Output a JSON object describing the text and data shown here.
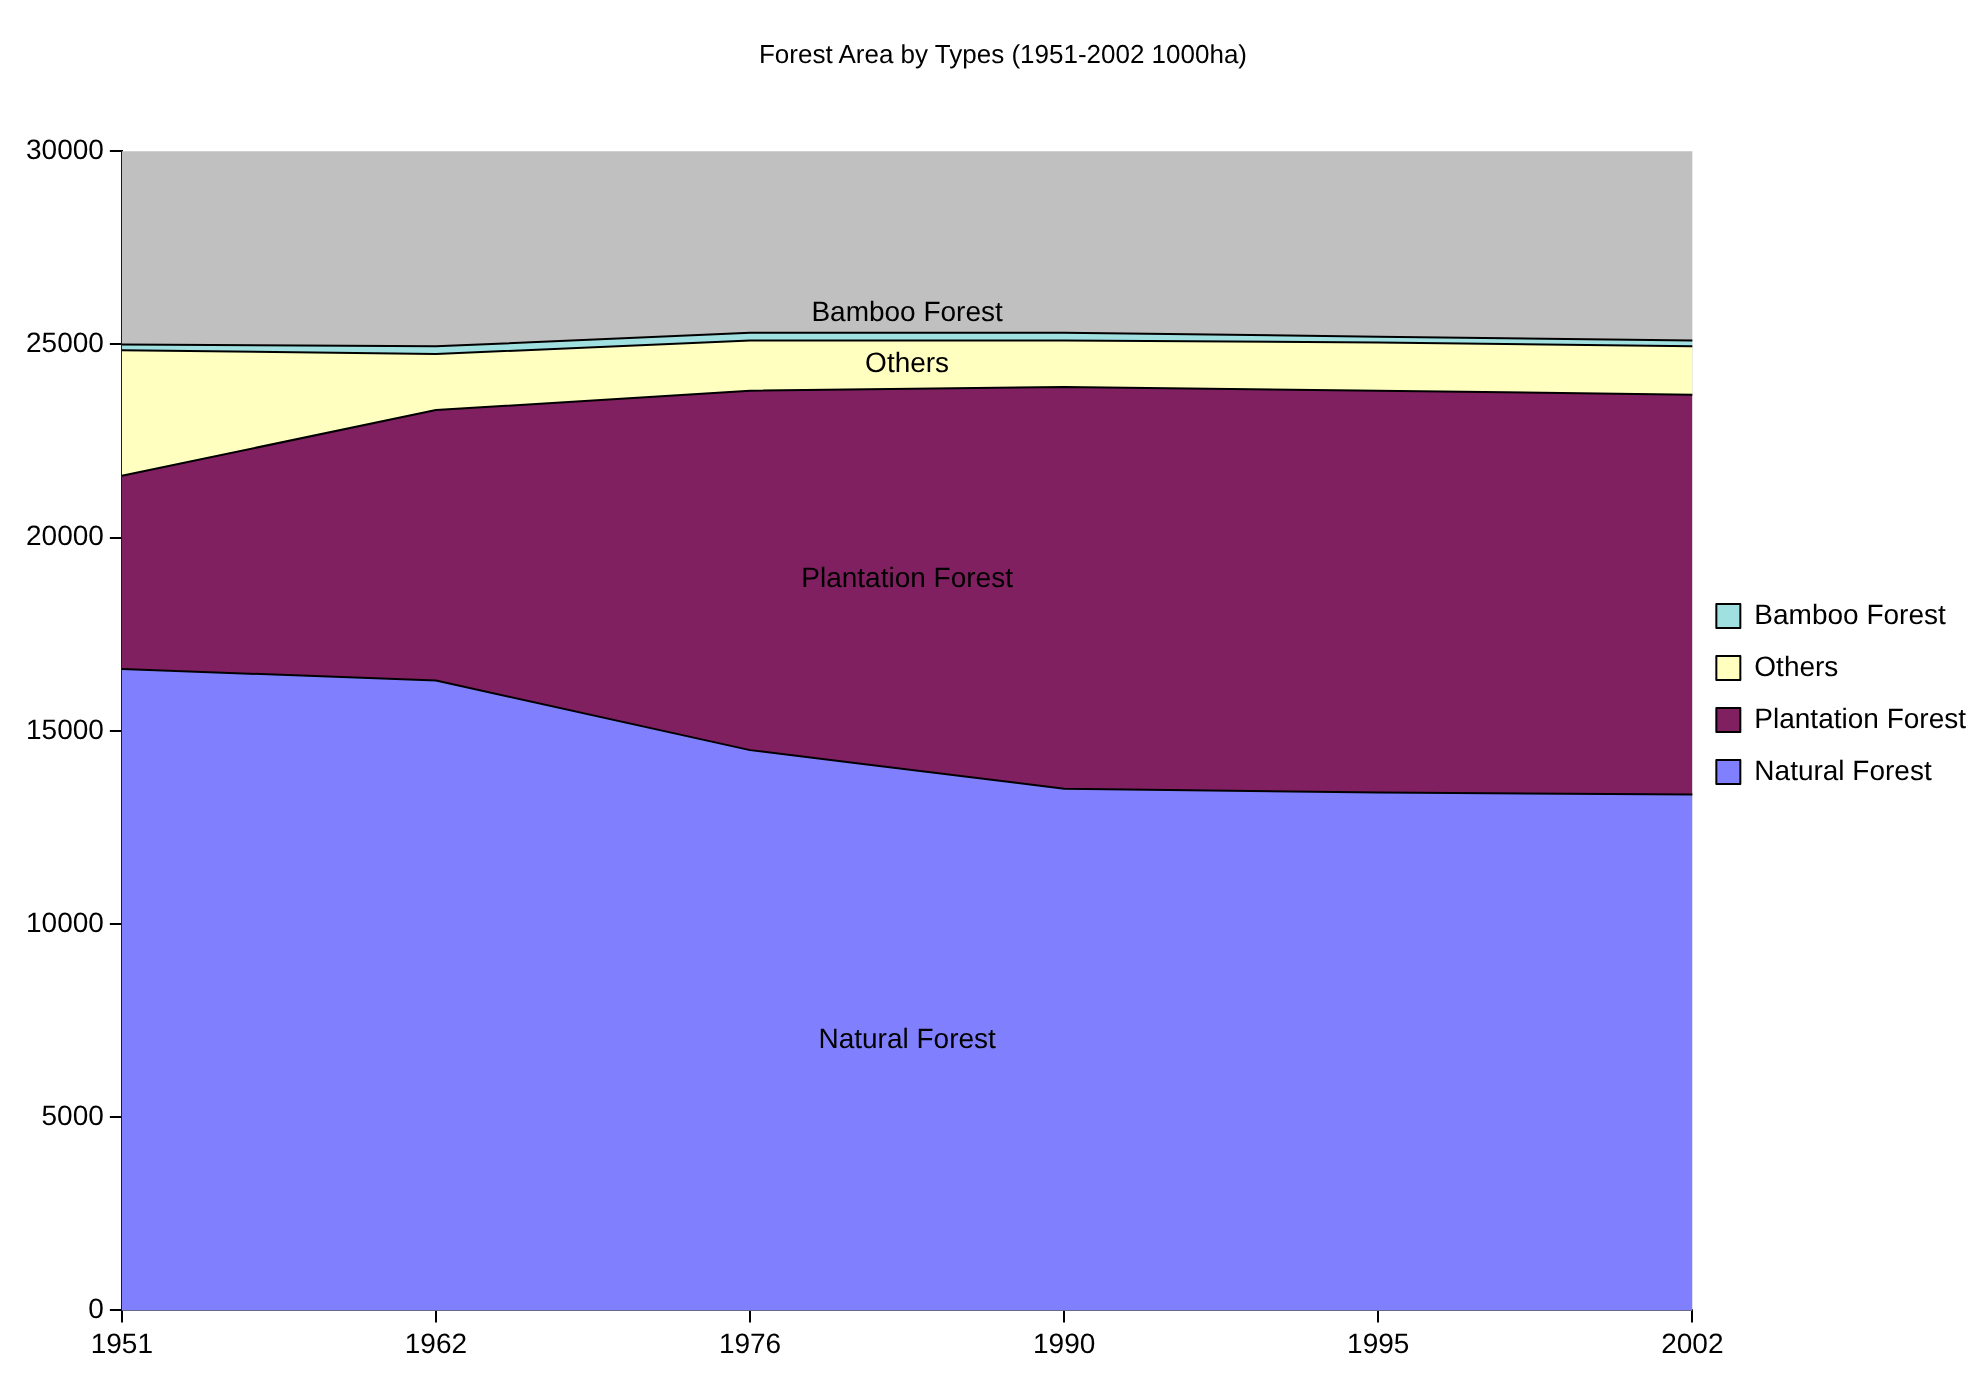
{
  "chart_data": {
    "type": "area",
    "title": "Forest Area by Types (1951-2002 1000ha)",
    "categories": [
      "1951",
      "1962",
      "1976",
      "1990",
      "1995",
      "2002"
    ],
    "stacked": true,
    "series": [
      {
        "name": "Natural Forest",
        "color": "#8080ff",
        "values": [
          16600,
          16300,
          14500,
          13500,
          13400,
          13350
        ]
      },
      {
        "name": "Plantation Forest",
        "color": "#802060",
        "values": [
          5000,
          7000,
          9300,
          10400,
          10400,
          10350
        ]
      },
      {
        "name": "Others",
        "color": "#ffffc0",
        "values": [
          3250,
          1450,
          1300,
          1200,
          1250,
          1250
        ]
      },
      {
        "name": "Bamboo Forest",
        "color": "#a0e0e0",
        "values": [
          150,
          200,
          200,
          200,
          150,
          150
        ]
      }
    ],
    "ylim": [
      0,
      30000
    ],
    "yticks": [
      0,
      5000,
      10000,
      15000,
      20000,
      25000,
      30000
    ],
    "grid": false,
    "legend": "right",
    "marker": "none",
    "line_style": "solid"
  }
}
